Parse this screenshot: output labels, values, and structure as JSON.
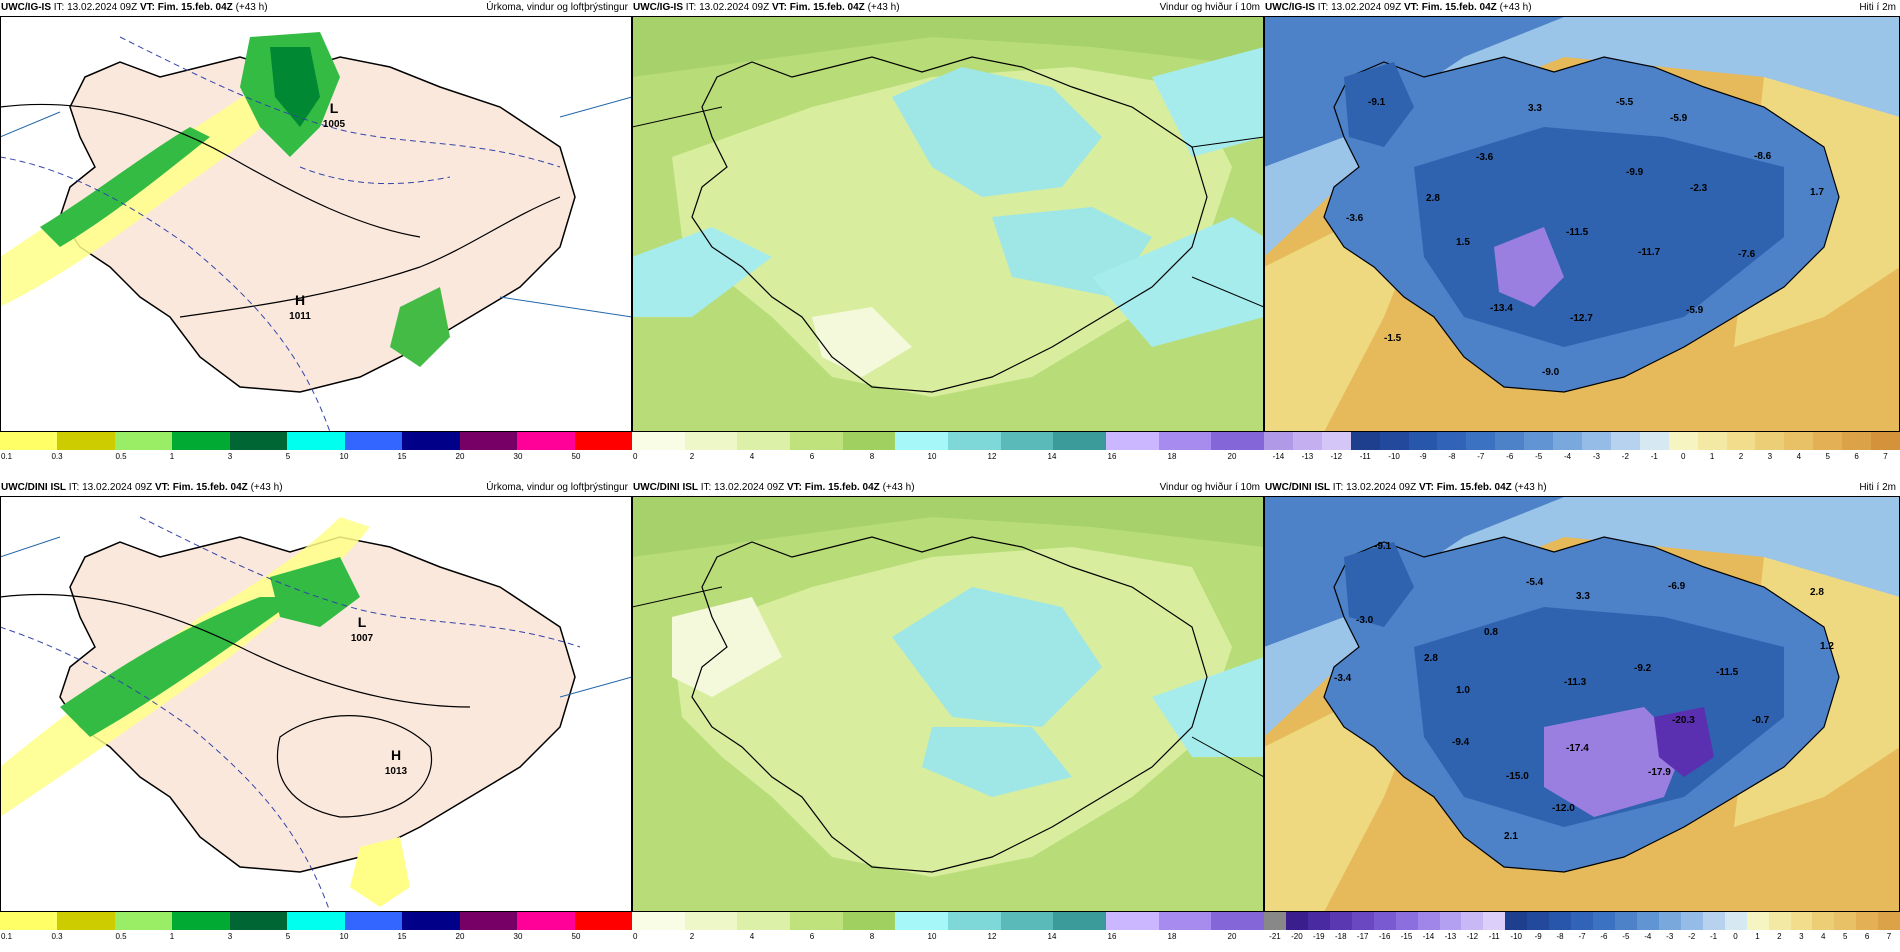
{
  "time_label": "IT: 13.02.2024 09Z",
  "vt_label": "VT: Fim. 15.feb. 04Z",
  "lead_label": "(+43 h)",
  "panels": {
    "precip_title": "Úrkoma, vindur og loftþrýstingur",
    "wind_title": "Vindur og hviður í 10m",
    "temp_title": "Hiti í 2m"
  },
  "rows": [
    {
      "model": "UWC/IG-IS",
      "pressure_labels": {
        "high": "H",
        "high_value": "1011",
        "low": "L",
        "low_value": "1005"
      },
      "temp_labels": [
        "-9.1",
        "3.3",
        "-5.5",
        "-5.9",
        "-3.6",
        "2.8",
        "-9.9",
        "-8.6",
        "-2.3",
        "1.7",
        "-3.6",
        "1.5",
        "-11.5",
        "-11.7",
        "-7.6",
        "-13.4",
        "-12.7",
        "-5.9",
        "-1.5",
        "-9.0"
      ],
      "temp_scale_ticks": [
        "-14",
        "-13",
        "-12",
        "-11",
        "-10",
        "-9",
        "-8",
        "-7",
        "-6",
        "-5",
        "-4",
        "-3",
        "-2",
        "-1",
        "0",
        "1",
        "2",
        "3",
        "4",
        "5",
        "6",
        "7"
      ]
    },
    {
      "model": "UWC/DINI ISL",
      "pressure_labels": {
        "high": "H",
        "high_value": "1013",
        "low": "L",
        "low_value": "1007"
      },
      "temp_labels": [
        "-9.1",
        "-5.4",
        "3.3",
        "-6.9",
        "2.8",
        "-3.0",
        "0.8",
        "1.2",
        "2.8",
        "-3.4",
        "1.0",
        "-11.3",
        "-9.2",
        "-11.5",
        "-20.3",
        "-0.7",
        "-9.4",
        "-17.4",
        "-15.0",
        "-17.9",
        "-12.0",
        "2.1"
      ],
      "temp_scale_ticks": [
        "-21",
        "-20",
        "-19",
        "-18",
        "-17",
        "-16",
        "-15",
        "-14",
        "-13",
        "-12",
        "-11",
        "-10",
        "-9",
        "-8",
        "-7",
        "-6",
        "-5",
        "-4",
        "-3",
        "-2",
        "-1",
        "0",
        "1",
        "2",
        "3",
        "4",
        "5",
        "6",
        "7"
      ]
    }
  ],
  "precip_scale": {
    "ticks": [
      "0.1",
      "0.3",
      "0.5",
      "1",
      "3",
      "5",
      "10",
      "15",
      "20",
      "30",
      "50"
    ],
    "colors": [
      "#ffff66",
      "#cccc00",
      "#99ee66",
      "#00aa33",
      "#006633",
      "#00ffee",
      "#3366ff",
      "#000088",
      "#770066",
      "#ff0099",
      "#ff0000"
    ]
  },
  "wind_scale": {
    "ticks": [
      "0",
      "2",
      "4",
      "6",
      "8",
      "10",
      "12",
      "14",
      "16",
      "18",
      "20"
    ],
    "colors": [
      "#fafde6",
      "#eef7c8",
      "#dcf0a8",
      "#bfe27c",
      "#9fd060",
      "#a6f7f7",
      "#7ed8d8",
      "#5ababa",
      "#3b9a9a",
      "#cbb7ff",
      "#a78bef",
      "#8466d8"
    ]
  },
  "temp_colors": {
    "very_cold": "#5a2fb0",
    "cold_purple": "#9a7ee0",
    "deep_blue": "#2050a0",
    "mid_blue": "#4d82c8",
    "light_blue": "#9ac4e8",
    "pale": "#d8ecf0",
    "pale_yellow": "#f6f2b6",
    "yellow": "#efd980",
    "warm": "#e6b95a",
    "orange": "#d99b3e"
  }
}
